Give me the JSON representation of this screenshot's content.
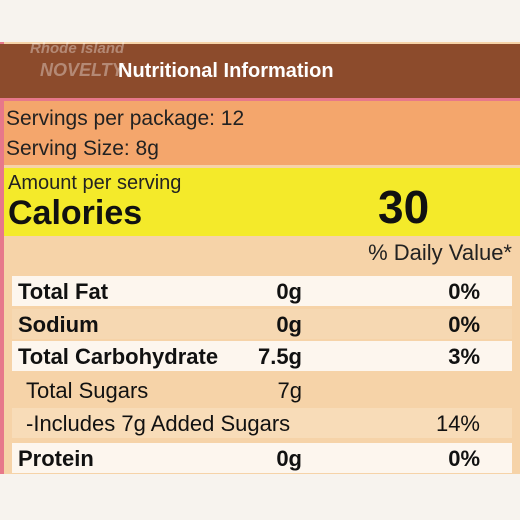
{
  "watermark": [
    "Rhode Island",
    "NOVELTY"
  ],
  "header": {
    "title": "Nutritional Information"
  },
  "servings": {
    "per_package": "Servings per package: 12",
    "size": "Serving Size: 8g"
  },
  "calories": {
    "amount_label": "Amount per serving",
    "label": "Calories",
    "value": "30"
  },
  "daily_value_header": "% Daily Value*",
  "table": {
    "rows": [
      [
        "Total Fat",
        "0g",
        "0%"
      ],
      [
        "Sodium",
        "0g",
        "0%"
      ],
      [
        "Total Carbohydrate",
        "7.5g",
        "3%"
      ],
      [
        "Total Sugars",
        "7g",
        ""
      ],
      [
        "-Includes 7g Added Sugars",
        "",
        "14%"
      ],
      [
        "Protein",
        "0g",
        "0%"
      ]
    ]
  }
}
